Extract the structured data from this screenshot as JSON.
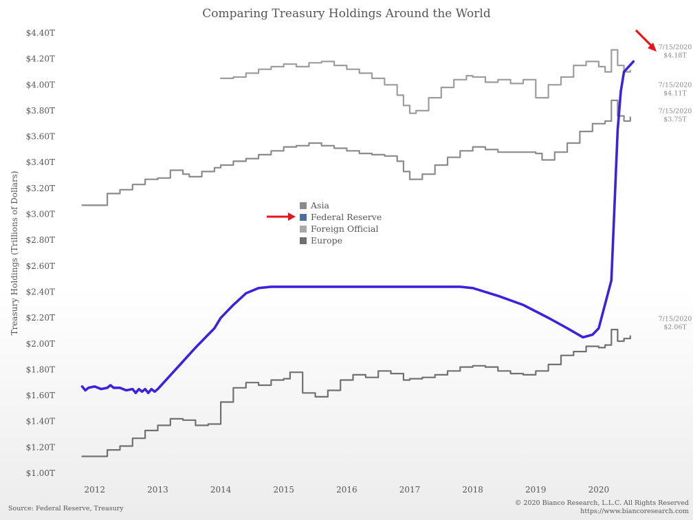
{
  "chart_data": {
    "type": "line",
    "title": "Comparing Treasury Holdings Around the World",
    "ylabel": "Treasury Holdings (Trillions of Dollars)",
    "xlabel": "",
    "ylim": [
      1.0,
      4.4
    ],
    "xlim": [
      2011.5,
      2020.95
    ],
    "y_ticks": [
      "$1.00T",
      "$1.20T",
      "$1.40T",
      "$1.60T",
      "$1.80T",
      "$2.00T",
      "$2.20T",
      "$2.40T",
      "$2.60T",
      "$2.80T",
      "$3.00T",
      "$3.20T",
      "$3.40T",
      "$3.60T",
      "$3.80T",
      "$4.00T",
      "$4.20T",
      "$4.40T"
    ],
    "y_tick_values": [
      1.0,
      1.2,
      1.4,
      1.6,
      1.8,
      2.0,
      2.2,
      2.4,
      2.6,
      2.8,
      3.0,
      3.2,
      3.4,
      3.6,
      3.8,
      4.0,
      4.2,
      4.4
    ],
    "x_ticks": [
      "2012",
      "2013",
      "2014",
      "2015",
      "2016",
      "2017",
      "2018",
      "2019",
      "2020"
    ],
    "x_tick_values": [
      2012,
      2013,
      2014,
      2015,
      2016,
      2017,
      2018,
      2019,
      2020
    ],
    "grid": false,
    "legend_position": "center-left",
    "series": [
      {
        "name": "Asia",
        "color": "#8a8a8a",
        "x": [
          2011.8,
          2012.1,
          2012.2,
          2012.4,
          2012.6,
          2012.8,
          2013.0,
          2013.2,
          2013.4,
          2013.5,
          2013.7,
          2013.9,
          2014.0,
          2014.2,
          2014.4,
          2014.6,
          2014.8,
          2015.0,
          2015.2,
          2015.4,
          2015.6,
          2015.8,
          2016.0,
          2016.2,
          2016.4,
          2016.6,
          2016.8,
          2016.9,
          2017.0,
          2017.2,
          2017.4,
          2017.6,
          2017.8,
          2018.0,
          2018.2,
          2018.4,
          2018.6,
          2018.8,
          2019.0,
          2019.1,
          2019.3,
          2019.5,
          2019.7,
          2019.9,
          2020.1,
          2020.2,
          2020.3,
          2020.4,
          2020.5
        ],
        "y": [
          3.07,
          3.07,
          3.16,
          3.19,
          3.23,
          3.27,
          3.28,
          3.34,
          3.31,
          3.29,
          3.33,
          3.36,
          3.38,
          3.41,
          3.43,
          3.46,
          3.49,
          3.52,
          3.53,
          3.55,
          3.53,
          3.51,
          3.49,
          3.47,
          3.46,
          3.45,
          3.41,
          3.33,
          3.27,
          3.31,
          3.38,
          3.44,
          3.49,
          3.52,
          3.5,
          3.48,
          3.48,
          3.48,
          3.47,
          3.42,
          3.48,
          3.55,
          3.64,
          3.7,
          3.72,
          3.88,
          3.76,
          3.72,
          3.75
        ]
      },
      {
        "name": "Federal Reserve",
        "color": "#3b22dd",
        "x": [
          2011.8,
          2011.85,
          2011.9,
          2012.0,
          2012.1,
          2012.2,
          2012.25,
          2012.3,
          2012.4,
          2012.5,
          2012.6,
          2012.65,
          2012.7,
          2012.75,
          2012.8,
          2012.85,
          2012.9,
          2012.95,
          2013.0,
          2013.3,
          2013.6,
          2013.9,
          2014.0,
          2014.2,
          2014.4,
          2014.6,
          2014.8,
          2015.0,
          2016.0,
          2017.0,
          2017.8,
          2018.0,
          2018.4,
          2018.8,
          2019.2,
          2019.5,
          2019.75,
          2019.9,
          2020.0,
          2020.2,
          2020.3,
          2020.35,
          2020.4,
          2020.55
        ],
        "y": [
          1.67,
          1.64,
          1.66,
          1.67,
          1.65,
          1.66,
          1.68,
          1.66,
          1.66,
          1.64,
          1.65,
          1.62,
          1.65,
          1.63,
          1.65,
          1.62,
          1.65,
          1.63,
          1.65,
          1.81,
          1.97,
          2.12,
          2.2,
          2.3,
          2.39,
          2.43,
          2.44,
          2.44,
          2.44,
          2.44,
          2.44,
          2.43,
          2.37,
          2.3,
          2.2,
          2.12,
          2.05,
          2.07,
          2.12,
          2.49,
          3.65,
          3.95,
          4.1,
          4.18
        ]
      },
      {
        "name": "Foreign Official",
        "color": "#9c9c9c",
        "x": [
          2014.0,
          2014.2,
          2014.4,
          2014.6,
          2014.8,
          2015.0,
          2015.2,
          2015.4,
          2015.6,
          2015.8,
          2016.0,
          2016.2,
          2016.4,
          2016.6,
          2016.8,
          2016.9,
          2017.0,
          2017.1,
          2017.3,
          2017.5,
          2017.7,
          2017.9,
          2018.0,
          2018.2,
          2018.4,
          2018.6,
          2018.8,
          2019.0,
          2019.2,
          2019.4,
          2019.6,
          2019.8,
          2020.0,
          2020.1,
          2020.2,
          2020.3,
          2020.4,
          2020.5
        ],
        "y": [
          4.05,
          4.06,
          4.09,
          4.12,
          4.14,
          4.16,
          4.14,
          4.17,
          4.18,
          4.15,
          4.12,
          4.09,
          4.05,
          4.0,
          3.92,
          3.84,
          3.78,
          3.8,
          3.9,
          3.98,
          4.04,
          4.07,
          4.06,
          4.02,
          4.04,
          4.01,
          4.04,
          3.9,
          4.0,
          4.06,
          4.15,
          4.18,
          4.14,
          4.1,
          4.27,
          4.15,
          4.1,
          4.11
        ]
      },
      {
        "name": "Europe",
        "color": "#707070",
        "x": [
          2011.8,
          2012.0,
          2012.2,
          2012.4,
          2012.6,
          2012.8,
          2013.0,
          2013.2,
          2013.4,
          2013.6,
          2013.8,
          2014.0,
          2014.2,
          2014.4,
          2014.6,
          2014.8,
          2015.0,
          2015.1,
          2015.3,
          2015.5,
          2015.7,
          2015.9,
          2016.1,
          2016.3,
          2016.5,
          2016.7,
          2016.9,
          2017.0,
          2017.2,
          2017.4,
          2017.6,
          2017.8,
          2018.0,
          2018.2,
          2018.4,
          2018.6,
          2018.8,
          2019.0,
          2019.2,
          2019.4,
          2019.6,
          2019.8,
          2020.0,
          2020.1,
          2020.2,
          2020.3,
          2020.4,
          2020.5
        ],
        "y": [
          1.13,
          1.13,
          1.18,
          1.21,
          1.27,
          1.33,
          1.37,
          1.42,
          1.41,
          1.37,
          1.38,
          1.55,
          1.66,
          1.7,
          1.68,
          1.72,
          1.73,
          1.78,
          1.62,
          1.59,
          1.64,
          1.72,
          1.76,
          1.74,
          1.79,
          1.77,
          1.72,
          1.73,
          1.74,
          1.76,
          1.79,
          1.82,
          1.83,
          1.82,
          1.79,
          1.77,
          1.76,
          1.79,
          1.84,
          1.91,
          1.94,
          1.98,
          1.97,
          1.99,
          2.11,
          2.02,
          2.04,
          2.06
        ]
      }
    ],
    "annotations": [
      {
        "line1": "7/15/2020",
        "line2": "$4.18T",
        "series": "Federal Reserve",
        "x": 2020.55,
        "y": 4.18
      },
      {
        "line1": "7/15/2020",
        "line2": "$4.11T",
        "series": "Foreign Official",
        "x": 2020.55,
        "y": 4.11
      },
      {
        "line1": "7/15/2020",
        "line2": "$3.75T",
        "series": "Asia",
        "x": 2020.55,
        "y": 3.75
      },
      {
        "line1": "7/15/2020",
        "line2": "$2.06T",
        "series": "Europe",
        "x": 2020.55,
        "y": 2.06
      }
    ]
  },
  "legend": {
    "items": [
      {
        "label": "Asia",
        "color": "#8a8a8a"
      },
      {
        "label": "Federal Reserve",
        "color": "#4a6fa0"
      },
      {
        "label": "Foreign Official",
        "color": "#a8a8a8"
      },
      {
        "label": "Europe",
        "color": "#707070"
      }
    ]
  },
  "footer": {
    "source": "Source: Federal Reserve, Treasury",
    "copyright": "© 2020 Bianco Research, L.L.C. All Rights Reserved",
    "url": "https://www.biancoresearch.com"
  },
  "highlight_color": "#e8141b",
  "icons": [
    "red-arrow-icon"
  ]
}
